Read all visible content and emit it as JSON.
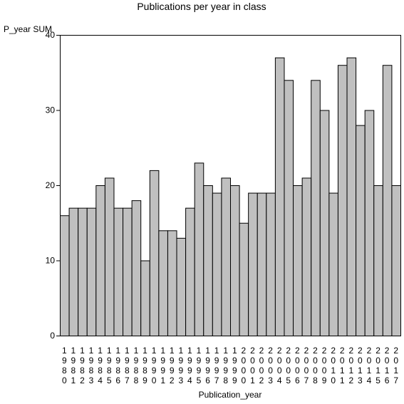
{
  "chart_data": {
    "type": "bar",
    "title": "Publications per year in class",
    "ylabel": "P_year SUM",
    "xlabel": "Publication_year",
    "ylim": [
      0,
      40
    ],
    "yticks": [
      0,
      10,
      20,
      30,
      40
    ],
    "grid": false,
    "categories": [
      "1980",
      "1981",
      "1982",
      "1983",
      "1984",
      "1985",
      "1986",
      "1987",
      "1988",
      "1989",
      "1990",
      "1991",
      "1992",
      "1993",
      "1994",
      "1995",
      "1996",
      "1997",
      "1998",
      "1999",
      "2000",
      "2001",
      "2002",
      "2003",
      "2004",
      "2005",
      "2006",
      "2007",
      "2008",
      "2009",
      "2010",
      "2011",
      "2012",
      "2013",
      "2014",
      "2015",
      "2016",
      "2017"
    ],
    "values": [
      16,
      17,
      17,
      17,
      20,
      21,
      17,
      17,
      18,
      10,
      22,
      14,
      14,
      13,
      17,
      23,
      20,
      19,
      21,
      20,
      15,
      19,
      19,
      19,
      37,
      34,
      20,
      21,
      34,
      30,
      19,
      36,
      37,
      28,
      30,
      20,
      36,
      20
    ],
    "bar_color": "#c0c0c0",
    "edge_color": "#000000"
  }
}
